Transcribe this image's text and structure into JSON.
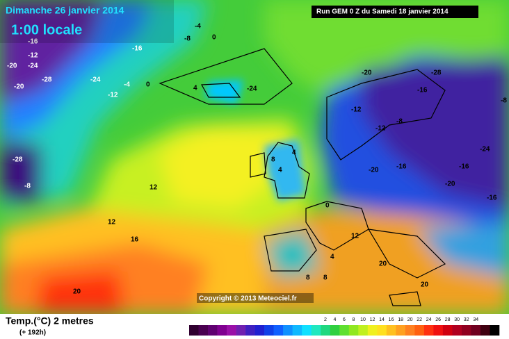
{
  "header": {
    "date": "Dimanche 26 janvier 2014",
    "time": "1:00 locale",
    "run": "Run GEM 0 Z du Samedi 18 janvier 2014"
  },
  "copyright": "Copyright © 2013 Meteociel.fr",
  "footer": {
    "variable": "Temp.(°C) 2 metres",
    "offset": "(+ 192h)"
  },
  "map_labels": [
    "-20",
    "-24",
    "-16",
    "-12",
    "-28",
    "-24",
    "-20",
    "-28",
    "-8",
    "-4",
    "0",
    "-12",
    "-16",
    "-8",
    "-4",
    "0",
    "4",
    "-24",
    "-20",
    "-28",
    "-16",
    "-12",
    "-8",
    "-20",
    "-24",
    "-16",
    "4",
    "8",
    "4",
    "12",
    "12",
    "16",
    "0",
    "12",
    "4",
    "8",
    "20",
    "20",
    "20",
    "-16",
    "-20",
    "-16",
    "-8",
    "-12",
    "8"
  ],
  "colorbar": {
    "labels": [
      2,
      4,
      6,
      8,
      10,
      12,
      14,
      16,
      18,
      20,
      22,
      24,
      26,
      28,
      30,
      32,
      34
    ],
    "colors": [
      "#300030",
      "#4a0050",
      "#600070",
      "#800090",
      "#9a10a8",
      "#7020b0",
      "#4020c0",
      "#2020d0",
      "#1040e8",
      "#1060ff",
      "#1090ff",
      "#10b8ff",
      "#10e0ff",
      "#20e8c0",
      "#20d880",
      "#30d040",
      "#60e030",
      "#90e820",
      "#c0f020",
      "#f0f020",
      "#ffe020",
      "#ffc020",
      "#ffa020",
      "#ff8020",
      "#ff6010",
      "#ff3010",
      "#f01010",
      "#d00010",
      "#b00020",
      "#900020",
      "#700020",
      "#400010",
      "#000000"
    ]
  }
}
